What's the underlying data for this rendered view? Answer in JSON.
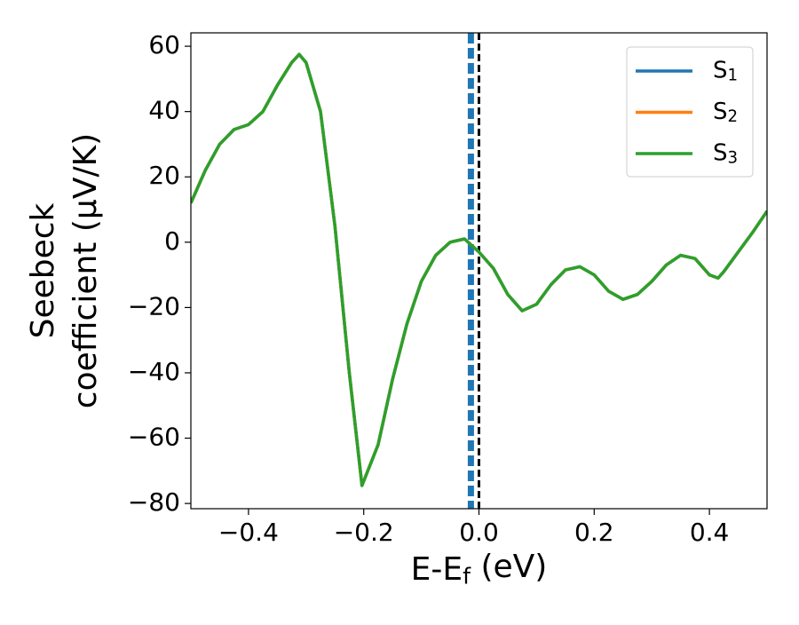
{
  "chart_data": {
    "type": "line",
    "xlabel": "E-E_f (eV)",
    "ylabel": [
      "Seebeck",
      "coefficient  (μV/K)"
    ],
    "x": [
      -0.5,
      -0.475,
      -0.45,
      -0.425,
      -0.4,
      -0.375,
      -0.35,
      -0.325,
      -0.312,
      -0.3,
      -0.275,
      -0.25,
      -0.225,
      -0.203,
      -0.175,
      -0.15,
      -0.125,
      -0.1,
      -0.075,
      -0.05,
      -0.025,
      0,
      0.025,
      0.05,
      0.075,
      0.1,
      0.125,
      0.15,
      0.175,
      0.2,
      0.225,
      0.25,
      0.275,
      0.3,
      0.325,
      0.35,
      0.375,
      0.4,
      0.415,
      0.425,
      0.45,
      0.475,
      0.5
    ],
    "series": [
      {
        "name": "S_1",
        "color": "#1f77b4",
        "values": [
          12,
          22,
          30,
          34.5,
          36,
          40,
          48,
          55,
          57.5,
          55,
          40,
          5,
          -40,
          -74.5,
          -62,
          -42,
          -25,
          -12,
          -4,
          0,
          1,
          -3,
          -8,
          -16,
          -21,
          -19,
          -13,
          -8.5,
          -7.5,
          -10,
          -15,
          -17.5,
          -16,
          -12,
          -7,
          -4,
          -5,
          -10,
          -11,
          -9,
          -3,
          3,
          9.5
        ]
      },
      {
        "name": "S_2",
        "color": "#ff7f0e",
        "values": [
          12,
          22,
          30,
          34.5,
          36,
          40,
          48,
          55,
          57.5,
          55,
          40,
          5,
          -40,
          -74.5,
          -62,
          -42,
          -25,
          -12,
          -4,
          0,
          1,
          -3,
          -8,
          -16,
          -21,
          -19,
          -13,
          -8.5,
          -7.5,
          -10,
          -15,
          -17.5,
          -16,
          -12,
          -7,
          -4,
          -5,
          -10,
          -11,
          -9,
          -3,
          3,
          9.5
        ]
      },
      {
        "name": "S_3",
        "color": "#2ca02c",
        "values": [
          12,
          22,
          30,
          34.5,
          36,
          40,
          48,
          55,
          57.5,
          55,
          40,
          5,
          -40,
          -74.5,
          -62,
          -42,
          -25,
          -12,
          -4,
          0,
          1,
          -3,
          -8,
          -16,
          -21,
          -19,
          -13,
          -8.5,
          -7.5,
          -10,
          -15,
          -17.5,
          -16,
          -12,
          -7,
          -4,
          -5,
          -10,
          -11,
          -9,
          -3,
          3,
          9.5
        ]
      }
    ],
    "vlines": [
      {
        "x": -0.014,
        "color": "#1f77b4",
        "width": 7
      },
      {
        "x": 0,
        "color": "#000000",
        "width": 3
      }
    ],
    "xlim": [
      -0.5,
      0.5
    ],
    "xticks": [
      {
        "value": -0.4,
        "label": "−0.4"
      },
      {
        "value": -0.2,
        "label": "−0.2"
      },
      {
        "value": 0,
        "label": "0.0"
      },
      0.2,
      0.4
    ],
    "ylim": [
      -81.6,
      64.1
    ],
    "yticks": [
      {
        "value": -80,
        "label": "−80"
      },
      {
        "value": -60,
        "label": "−60"
      },
      {
        "value": -40,
        "label": "−40"
      },
      {
        "value": -20,
        "label": "−20"
      },
      0,
      20,
      40,
      60
    ],
    "legend": "upper right"
  }
}
